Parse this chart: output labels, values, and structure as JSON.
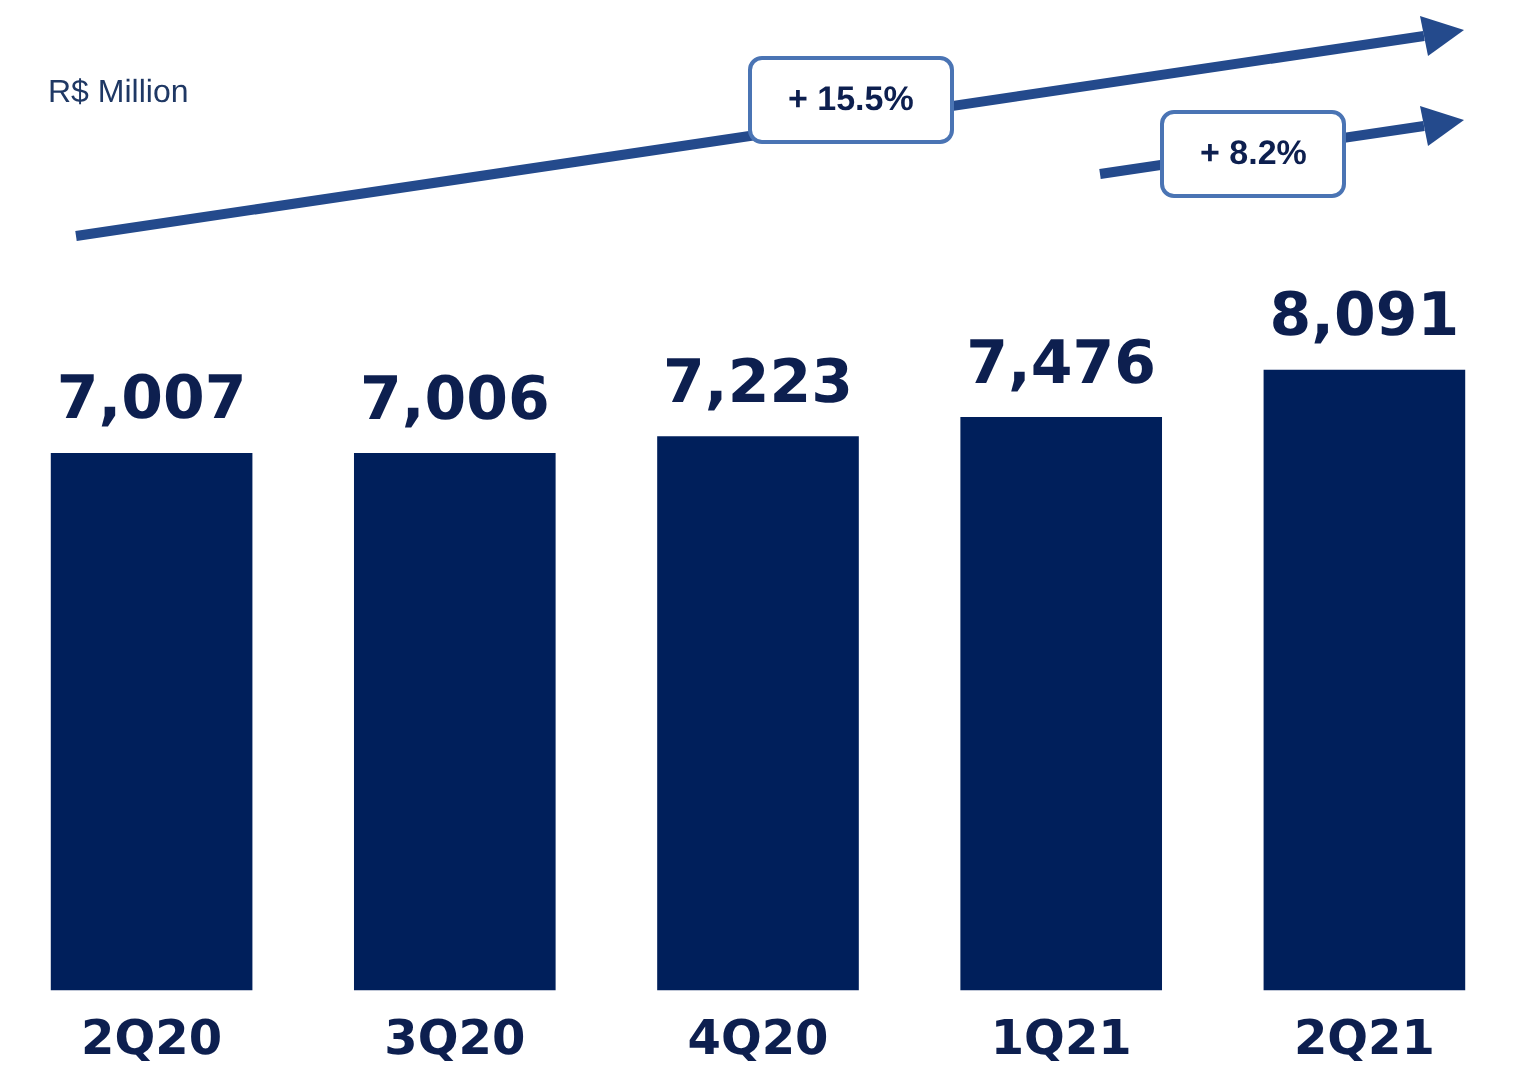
{
  "chart_data": {
    "type": "bar",
    "categories": [
      "2Q20",
      "3Q20",
      "4Q20",
      "1Q21",
      "2Q21"
    ],
    "values": [
      7007,
      7006,
      7223,
      7476,
      8091
    ],
    "value_labels": [
      "7,007",
      "7,006",
      "7,223",
      "7,476",
      "8,091"
    ],
    "color": "#001f5b",
    "grid": false,
    "legend": false,
    "annotations": [
      "R$ Million",
      "+ 15.5%",
      "+ 8.2%"
    ]
  }
}
